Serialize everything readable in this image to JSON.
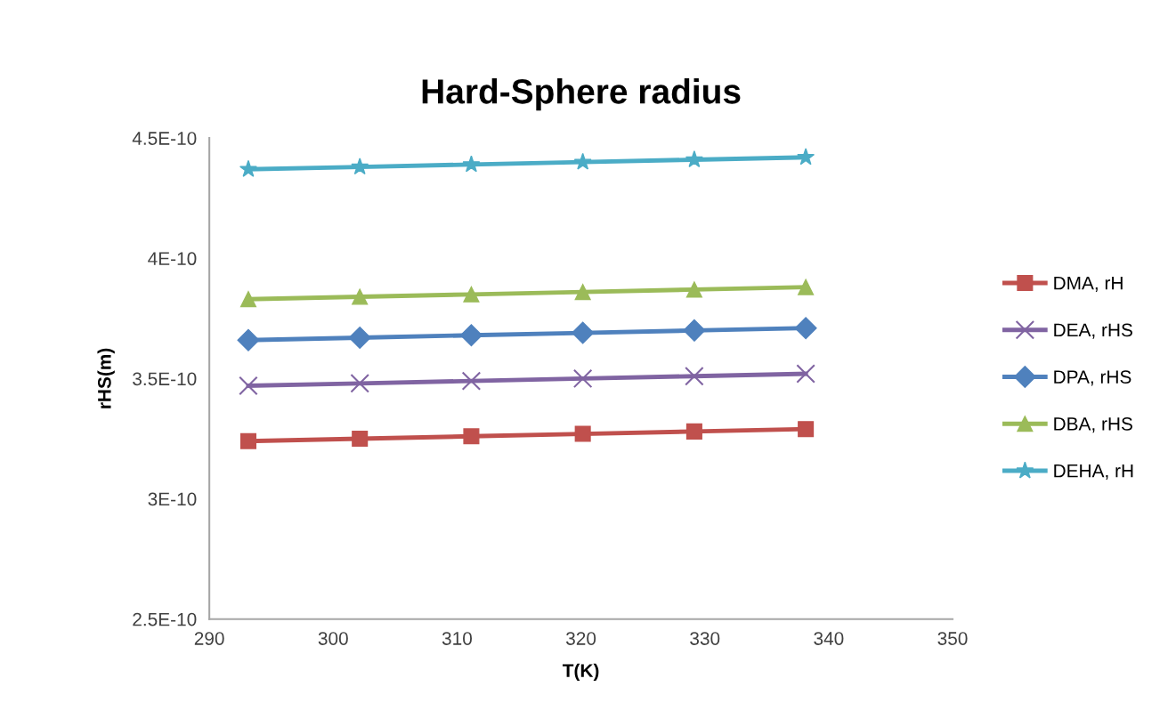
{
  "chart_data": {
    "type": "line",
    "title": "Hard-Sphere radius",
    "xlabel": "T(K)",
    "ylabel": "rHS(m)",
    "x": [
      293.15,
      302.15,
      311.15,
      320.15,
      329.15,
      338.15
    ],
    "xlim": [
      290,
      350
    ],
    "xticks": [
      290,
      300,
      310,
      320,
      330,
      340,
      350
    ],
    "ylim": [
      2.5e-10,
      4.5e-10
    ],
    "yticks": [
      {
        "value": 2.5e-10,
        "label": "2.5E-10"
      },
      {
        "value": 3e-10,
        "label": "3E-10"
      },
      {
        "value": 3.5e-10,
        "label": "3.5E-10"
      },
      {
        "value": 4e-10,
        "label": "4E-10"
      },
      {
        "value": 4.5e-10,
        "label": "4.5E-10"
      }
    ],
    "grid": false,
    "legend": "right",
    "series": [
      {
        "name": "DMA, rH",
        "color": "#c0504d",
        "marker": "square",
        "values": [
          3.24e-10,
          3.25e-10,
          3.26e-10,
          3.27e-10,
          3.28e-10,
          3.29e-10
        ]
      },
      {
        "name": "DEA, rHS",
        "color": "#8064a2",
        "marker": "cross",
        "values": [
          3.47e-10,
          3.48e-10,
          3.49e-10,
          3.5e-10,
          3.51e-10,
          3.52e-10
        ]
      },
      {
        "name": "DPA, rHS",
        "color": "#4f81bd",
        "marker": "diamond",
        "values": [
          3.66e-10,
          3.67e-10,
          3.68e-10,
          3.69e-10,
          3.7e-10,
          3.71e-10
        ]
      },
      {
        "name": "DBA, rHS",
        "color": "#9bbb59",
        "marker": "triangle",
        "values": [
          3.83e-10,
          3.84e-10,
          3.85e-10,
          3.86e-10,
          3.87e-10,
          3.88e-10
        ]
      },
      {
        "name": "DEHA, rH",
        "color": "#4bacc6",
        "marker": "star",
        "values": [
          4.37e-10,
          4.38e-10,
          4.39e-10,
          4.4e-10,
          4.41e-10,
          4.42e-10
        ]
      }
    ]
  }
}
